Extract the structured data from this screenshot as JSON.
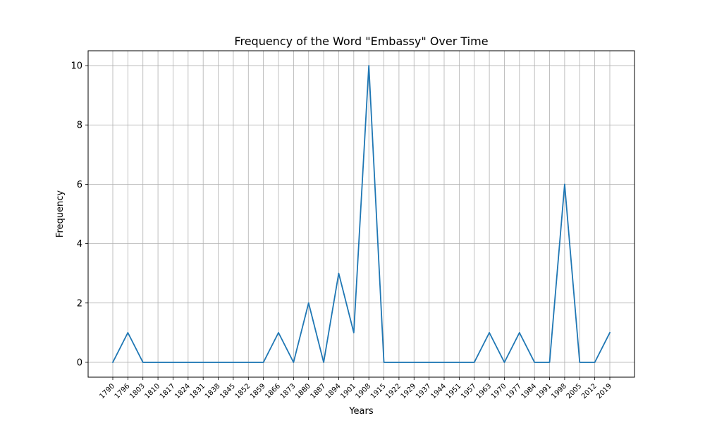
{
  "chart_data": {
    "type": "line",
    "title": "Frequency of the Word \"Embassy\" Over Time",
    "xlabel": "Years",
    "ylabel": "Frequency",
    "x": [
      "1790",
      "1796",
      "1803",
      "1810",
      "1817",
      "1824",
      "1831",
      "1838",
      "1845",
      "1852",
      "1859",
      "1866",
      "1873",
      "1880",
      "1887",
      "1894",
      "1901",
      "1908",
      "1915",
      "1922",
      "1929",
      "1937",
      "1944",
      "1951",
      "1957",
      "1963",
      "1970",
      "1977",
      "1984",
      "1991",
      "1998",
      "2005",
      "2012",
      "2019"
    ],
    "series": [
      {
        "values": [
          0,
          1,
          0,
          0,
          0,
          0,
          0,
          0,
          0,
          0,
          0,
          1,
          0,
          2,
          0,
          3,
          1,
          10,
          0,
          0,
          0,
          0,
          0,
          0,
          0,
          1,
          0,
          1,
          0,
          0,
          6,
          0,
          0,
          1
        ],
        "color": "#1f77b4"
      }
    ],
    "yticks": [
      0,
      2,
      4,
      6,
      8,
      10
    ],
    "ylim": [
      -0.5,
      10.5
    ],
    "grid": true,
    "legend": "none"
  }
}
